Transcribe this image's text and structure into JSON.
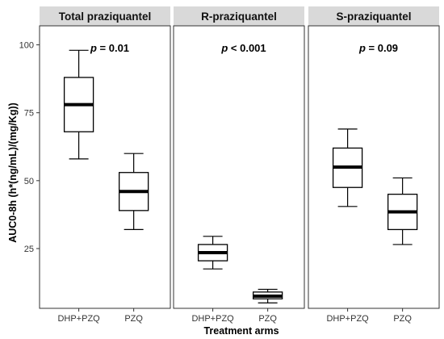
{
  "chart_data": {
    "type": "boxplot",
    "xlabel": "Treatment arms",
    "ylabel": "AUC0-8h (h*(ng/mL)/(mg/Kg))",
    "ylim": [
      3,
      107
    ],
    "yticks": [
      25,
      50,
      75,
      100
    ],
    "categories": [
      "DHP+PZQ",
      "PZQ"
    ],
    "grid": false,
    "panels": [
      {
        "title": "Total praziquantel",
        "annotation": {
          "prefix": "p",
          "rest": " = 0.01"
        },
        "boxes": [
          {
            "category": "DHP+PZQ",
            "min": 58,
            "q1": 68,
            "median": 78,
            "q3": 88,
            "max": 98
          },
          {
            "category": "PZQ",
            "min": 32,
            "q1": 39,
            "median": 46,
            "q3": 53,
            "max": 60
          }
        ]
      },
      {
        "title": "R-praziquantel",
        "annotation": {
          "prefix": "p",
          "rest": " < 0.001"
        },
        "boxes": [
          {
            "category": "DHP+PZQ",
            "min": 17.5,
            "q1": 20.5,
            "median": 23.5,
            "q3": 26.5,
            "max": 29.5
          },
          {
            "category": "PZQ",
            "min": 5,
            "q1": 6.5,
            "median": 7.5,
            "q3": 9,
            "max": 10
          }
        ]
      },
      {
        "title": "S-praziquantel",
        "annotation": {
          "prefix": "p",
          "rest": " = 0.09"
        },
        "boxes": [
          {
            "category": "DHP+PZQ",
            "min": 40.5,
            "q1": 47.5,
            "median": 55,
            "q3": 62,
            "max": 69
          },
          {
            "category": "PZQ",
            "min": 26.5,
            "q1": 32,
            "median": 38.5,
            "q3": 45,
            "max": 51
          }
        ]
      }
    ],
    "colors": {
      "strip": "#d9d9d9",
      "box": "#000000",
      "frame": "#333333"
    }
  }
}
